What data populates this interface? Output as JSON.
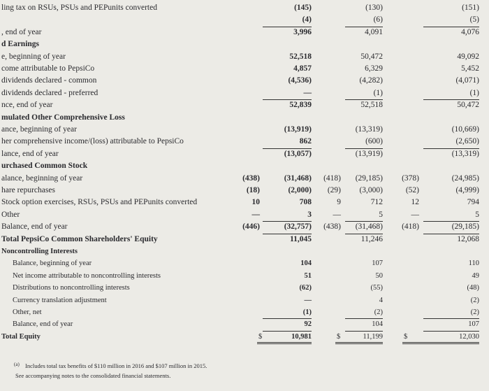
{
  "statement": {
    "rows": [
      {
        "label": "ling tax on RSUs, PSUs and PEPunits converted",
        "cells": [
          null,
          "(145)",
          null,
          "(130)",
          null,
          "(151)"
        ]
      },
      {
        "label": null,
        "cells": [
          null,
          "(4)",
          null,
          "(6)",
          null,
          "(5)"
        ]
      },
      {
        "label": ", end of year",
        "cells": [
          null,
          "3,996",
          null,
          "4,091",
          null,
          "4,076"
        ]
      },
      {
        "label": "d Earnings",
        "cells": null
      },
      {
        "label": "e, beginning of year",
        "cells": [
          null,
          "52,518",
          null,
          "50,472",
          null,
          "49,092"
        ]
      },
      {
        "label": "come attributable to PepsiCo",
        "cells": [
          null,
          "4,857",
          null,
          "6,329",
          null,
          "5,452"
        ]
      },
      {
        "label": "dividends declared - common",
        "cells": [
          null,
          "(4,536)",
          null,
          "(4,282)",
          null,
          "(4,071)"
        ]
      },
      {
        "label": "dividends declared - preferred",
        "cells": [
          null,
          "—",
          null,
          "(1)",
          null,
          "(1)"
        ]
      },
      {
        "label": "nce, end of year",
        "cells": [
          null,
          "52,839",
          null,
          "52,518",
          null,
          "50,472"
        ]
      },
      {
        "label": "mulated Other Comprehensive Loss",
        "cells": null
      },
      {
        "label": "ance, beginning of year",
        "cells": [
          null,
          "(13,919)",
          null,
          "(13,319)",
          null,
          "(10,669)"
        ]
      },
      {
        "label": "her comprehensive income/(loss) attributable to PepsiCo",
        "cells": [
          null,
          "862",
          null,
          "(600)",
          null,
          "(2,650)"
        ]
      },
      {
        "label": "lance, end of year",
        "cells": [
          null,
          "(13,057)",
          null,
          "(13,919)",
          null,
          "(13,319)"
        ]
      },
      {
        "label": "urchased Common Stock",
        "cells": null
      },
      {
        "label": "alance, beginning of year",
        "cells": [
          "(438)",
          "(31,468)",
          "(418)",
          "(29,185)",
          "(378)",
          "(24,985)"
        ]
      },
      {
        "label": "hare repurchases",
        "cells": [
          "(18)",
          "(2,000)",
          "(29)",
          "(3,000)",
          "(52)",
          "(4,999)"
        ]
      },
      {
        "label": "Stock option exercises, RSUs, PSUs and PEPunits converted",
        "cells": [
          "10",
          "708",
          "9",
          "712",
          "12",
          "794"
        ]
      },
      {
        "label": "Other",
        "cells": [
          "—",
          "3",
          "—",
          "5",
          "—",
          "5"
        ]
      },
      {
        "label": "Balance, end of year",
        "cells": [
          "(446)",
          "(32,757)",
          "(438)",
          "(31,468)",
          "(418)",
          "(29,185)"
        ]
      },
      {
        "label": "Total PepsiCo Common Shareholders' Equity",
        "cells": [
          null,
          "11,045",
          null,
          "11,246",
          null,
          "12,068"
        ]
      },
      {
        "label": "Noncontrolling Interests",
        "cells": null
      },
      {
        "label": "Balance, beginning of year",
        "cells": [
          null,
          "104",
          null,
          "107",
          null,
          "110"
        ]
      },
      {
        "label": "Net income attributable to noncontrolling interests",
        "cells": [
          null,
          "51",
          null,
          "50",
          null,
          "49"
        ]
      },
      {
        "label": "Distributions to noncontrolling interests",
        "cells": [
          null,
          "(62)",
          null,
          "(55)",
          null,
          "(48)"
        ]
      },
      {
        "label": "Currency translation adjustment",
        "cells": [
          null,
          "—",
          null,
          "4",
          null,
          "(2)"
        ]
      },
      {
        "label": "Other, net",
        "cells": [
          null,
          "(1)",
          null,
          "(2)",
          null,
          "(2)"
        ]
      },
      {
        "label": "Balance, end of year",
        "cells": [
          null,
          "92",
          null,
          "104",
          null,
          "107"
        ]
      },
      {
        "label": "Total Equity",
        "currency": "$",
        "cells": [
          null,
          "10,981",
          null,
          "11,199",
          null,
          "12,030"
        ]
      }
    ],
    "footnote": {
      "marker": "(a)",
      "text": "Includes total tax benefits of $110 million in 2016 and $107 million in 2015."
    },
    "note": "See accompanying notes to the consolidated financial statements."
  }
}
